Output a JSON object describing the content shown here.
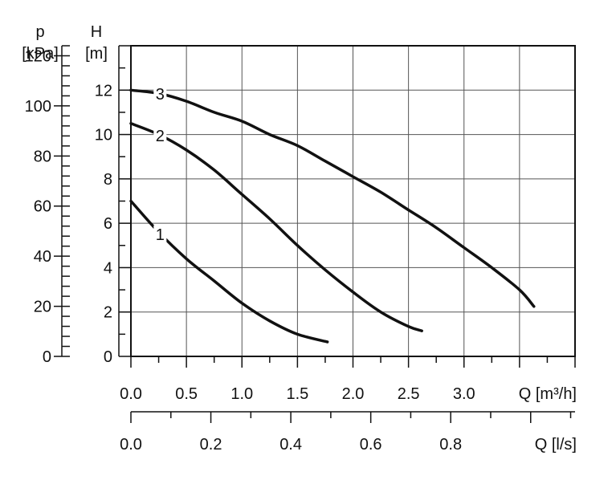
{
  "chart_data": {
    "type": "line",
    "grid": true,
    "axes": {
      "p": {
        "label_lines": [
          "p",
          "[kPa]"
        ],
        "range": [
          0,
          124
        ],
        "ticks": [
          0,
          20,
          40,
          60,
          80,
          100,
          120
        ]
      },
      "H": {
        "label_lines": [
          "H",
          "[m]"
        ],
        "range": [
          0,
          14
        ],
        "ticks": [
          0,
          2,
          4,
          6,
          8,
          10,
          12
        ]
      },
      "Q_m3h": {
        "label": "Q [m³/h]",
        "range": [
          0,
          4.0
        ],
        "ticks": [
          0.0,
          0.5,
          1.0,
          1.5,
          2.0,
          2.5,
          3.0
        ]
      },
      "Q_ls": {
        "label": "Q [l/s]",
        "range": [
          0,
          1.111
        ],
        "ticks": [
          0.0,
          0.2,
          0.4,
          0.6,
          0.8
        ]
      }
    },
    "x_unit": "m³/h",
    "y_unit": "m",
    "series": [
      {
        "name": "1",
        "x": [
          0,
          0.25,
          0.5,
          0.75,
          1.0,
          1.25,
          1.5,
          1.77
        ],
        "y": [
          7.0,
          5.6,
          4.4,
          3.4,
          2.4,
          1.6,
          1.0,
          0.65
        ]
      },
      {
        "name": "2",
        "x": [
          0,
          0.25,
          0.5,
          0.75,
          1.0,
          1.25,
          1.5,
          1.75,
          2.0,
          2.25,
          2.5,
          2.62
        ],
        "y": [
          10.5,
          10.0,
          9.3,
          8.4,
          7.3,
          6.2,
          5.0,
          3.9,
          2.9,
          2.0,
          1.35,
          1.15
        ]
      },
      {
        "name": "3",
        "x": [
          0,
          0.25,
          0.5,
          0.75,
          1.0,
          1.25,
          1.5,
          1.75,
          2.0,
          2.25,
          2.5,
          2.75,
          3.0,
          3.25,
          3.5,
          3.63
        ],
        "y": [
          12.0,
          11.85,
          11.5,
          11.0,
          10.6,
          10.0,
          9.5,
          8.8,
          8.1,
          7.4,
          6.6,
          5.8,
          4.9,
          4.0,
          3.0,
          2.25
        ]
      }
    ]
  }
}
